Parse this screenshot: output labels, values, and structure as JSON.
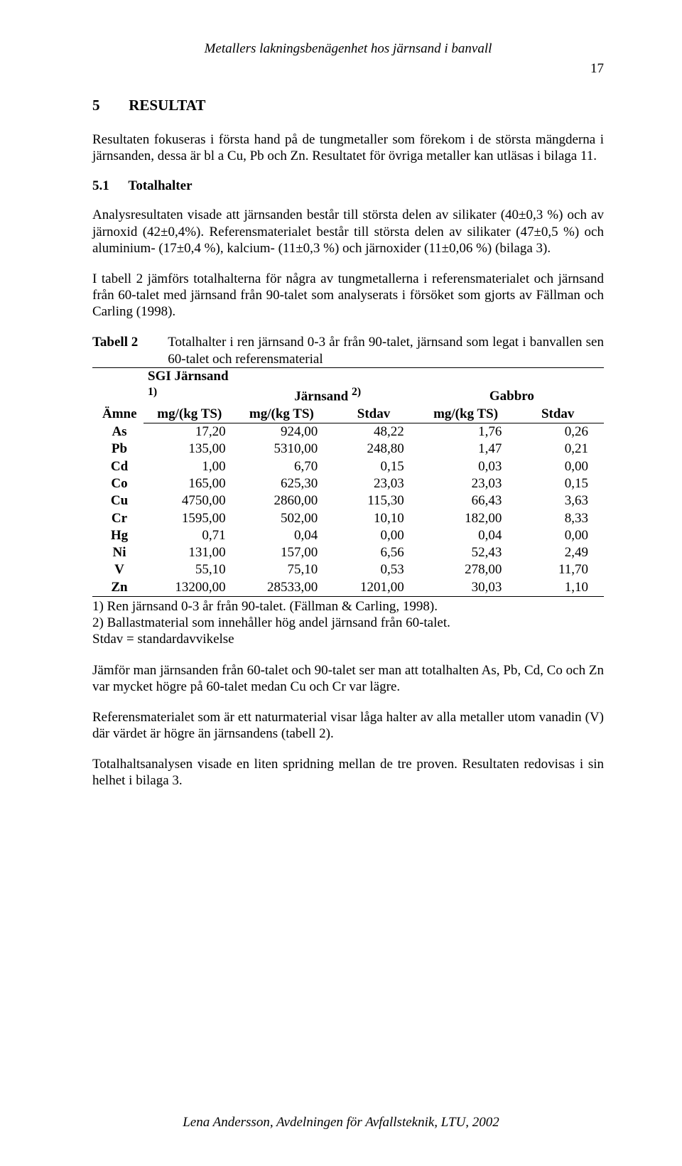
{
  "running_head": "Metallers lakningsbenägenhet hos järnsand i banvall",
  "page_number": "17",
  "section1": {
    "num": "5",
    "title": "RESULTAT"
  },
  "p1": "Resultaten fokuseras i första hand på de tungmetaller som förekom i de största mängderna i järnsanden, dessa är bl a Cu, Pb och Zn. Resultatet för övriga metaller kan utläsas i bilaga 11.",
  "section2": {
    "num": "5.1",
    "title": "Totalhalter"
  },
  "p2": "Analysresultaten visade att järnsanden består till största delen av silikater (40±0,3 %) och av järnoxid (42±0,4%). Referensmaterialet består till största delen av silikater (47±0,5 %) och aluminium- (17±0,4 %), kalcium- (11±0,3 %) och järnoxider (11±0,06 %) (bilaga 3).",
  "p3": "I tabell 2 jämförs totalhalterna för några av tungmetallerna i referensmaterialet och järnsand från 60-talet med järnsand från 90-talet som analyserats i försöket som gjorts av Fällman och Carling (1998).",
  "tabell2": {
    "label": "Tabell 2",
    "caption": "Totalhalter i ren järnsand 0-3 år från 90-talet, järnsand som legat i banvallen sen 60-talet och referensmaterial",
    "head": {
      "amne": "Ämne",
      "sgi": "SGI Järnsand ",
      "sgi_sup": "1)",
      "jarnsand": "Järnsand ",
      "jarnsand_sup": "2)",
      "gabbro": "Gabbro",
      "unit": "mg/(kg TS)",
      "stdav": "Stdav"
    },
    "rows": [
      {
        "e": "As",
        "c1": "17,20",
        "c2": "924,00",
        "c3": "48,22",
        "c4": "1,76",
        "c5": "0,26"
      },
      {
        "e": "Pb",
        "c1": "135,00",
        "c2": "5310,00",
        "c3": "248,80",
        "c4": "1,47",
        "c5": "0,21"
      },
      {
        "e": "Cd",
        "c1": "1,00",
        "c2": "6,70",
        "c3": "0,15",
        "c4": "0,03",
        "c5": "0,00"
      },
      {
        "e": "Co",
        "c1": "165,00",
        "c2": "625,30",
        "c3": "23,03",
        "c4": "23,03",
        "c5": "0,15"
      },
      {
        "e": "Cu",
        "c1": "4750,00",
        "c2": "2860,00",
        "c3": "115,30",
        "c4": "66,43",
        "c5": "3,63"
      },
      {
        "e": "Cr",
        "c1": "1595,00",
        "c2": "502,00",
        "c3": "10,10",
        "c4": "182,00",
        "c5": "8,33"
      },
      {
        "e": "Hg",
        "c1": "0,71",
        "c2": "0,04",
        "c3": "0,00",
        "c4": "0,04",
        "c5": "0,00"
      },
      {
        "e": "Ni",
        "c1": "131,00",
        "c2": "157,00",
        "c3": "6,56",
        "c4": "52,43",
        "c5": "2,49"
      },
      {
        "e": "V",
        "c1": "55,10",
        "c2": "75,10",
        "c3": "0,53",
        "c4": "278,00",
        "c5": "11,70"
      },
      {
        "e": "Zn",
        "c1": "13200,00",
        "c2": "28533,00",
        "c3": "1201,00",
        "c4": "30,03",
        "c5": "1,10"
      }
    ],
    "notes": {
      "n1": "1)   Ren järnsand 0-3 år från 90-talet. (Fällman & Carling, 1998).",
      "n2": "2)   Ballastmaterial som innehåller hög andel järnsand från 60-talet.",
      "n3": "Stdav = standardavvikelse"
    }
  },
  "p4": "Jämför man järnsanden från 60-talet och 90-talet ser man att totalhalten As, Pb, Cd, Co och Zn var mycket högre på 60-talet medan Cu och Cr var lägre.",
  "p5": "Referensmaterialet som är ett naturmaterial visar låga halter av alla metaller utom vanadin (V) där värdet är högre än järnsandens (tabell 2).",
  "p6": "Totalhaltsanalysen visade en liten spridning mellan de tre proven. Resultaten redovisas i sin helhet i bilaga 3.",
  "footer": "Lena Andersson, Avdelningen för Avfallsteknik, LTU, 2002"
}
